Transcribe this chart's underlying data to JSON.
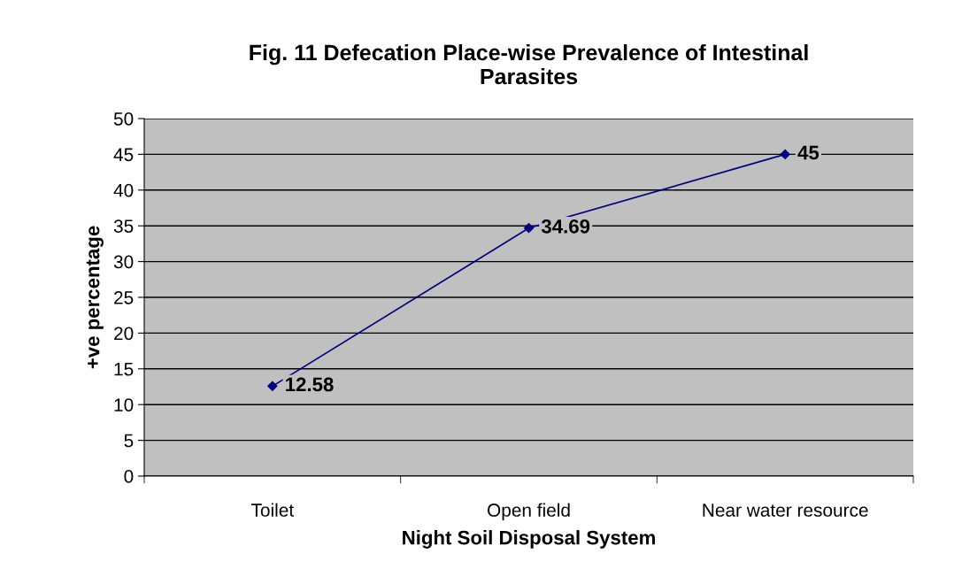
{
  "chart_data": {
    "type": "line",
    "title": "Fig. 11 Defecation Place-wise Prevalence of Intestinal\nParasites",
    "xlabel": "Night Soil Disposal System",
    "ylabel": "+ve percentage",
    "categories": [
      "Toilet",
      "Open field",
      "Near water resource"
    ],
    "series": [
      {
        "color": "#000080",
        "values": [
          12.58,
          34.69,
          45
        ]
      }
    ],
    "ylim": [
      0,
      50
    ],
    "yticks": [
      0,
      5,
      10,
      15,
      20,
      25,
      30,
      35,
      40,
      45,
      50
    ],
    "grid": "y",
    "marker": "diamond",
    "line_style": "solid",
    "data_labels": true
  }
}
